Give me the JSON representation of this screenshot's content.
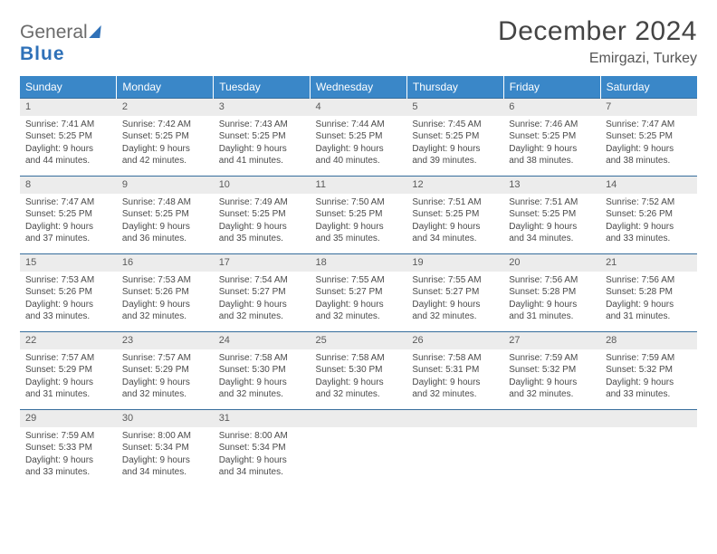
{
  "brand": {
    "part1": "General",
    "part2": "Blue"
  },
  "title": "December 2024",
  "location": "Emirgazi, Turkey",
  "style": {
    "header_bg": "#3a87c8",
    "header_fg": "#ffffff",
    "row_border": "#366d9c",
    "daynum_bg": "#ececec",
    "page_bg": "#ffffff",
    "text_color": "#4a4a4a",
    "brand_blue": "#2f71b8",
    "title_fontsize_pt": 22,
    "location_fontsize_pt": 12,
    "cell_fontsize_pt": 8,
    "header_fontsize_pt": 9
  },
  "day_headers": [
    "Sunday",
    "Monday",
    "Tuesday",
    "Wednesday",
    "Thursday",
    "Friday",
    "Saturday"
  ],
  "weeks": [
    [
      {
        "n": "1",
        "sr": "Sunrise: 7:41 AM",
        "ss": "Sunset: 5:25 PM",
        "d1": "Daylight: 9 hours",
        "d2": "and 44 minutes."
      },
      {
        "n": "2",
        "sr": "Sunrise: 7:42 AM",
        "ss": "Sunset: 5:25 PM",
        "d1": "Daylight: 9 hours",
        "d2": "and 42 minutes."
      },
      {
        "n": "3",
        "sr": "Sunrise: 7:43 AM",
        "ss": "Sunset: 5:25 PM",
        "d1": "Daylight: 9 hours",
        "d2": "and 41 minutes."
      },
      {
        "n": "4",
        "sr": "Sunrise: 7:44 AM",
        "ss": "Sunset: 5:25 PM",
        "d1": "Daylight: 9 hours",
        "d2": "and 40 minutes."
      },
      {
        "n": "5",
        "sr": "Sunrise: 7:45 AM",
        "ss": "Sunset: 5:25 PM",
        "d1": "Daylight: 9 hours",
        "d2": "and 39 minutes."
      },
      {
        "n": "6",
        "sr": "Sunrise: 7:46 AM",
        "ss": "Sunset: 5:25 PM",
        "d1": "Daylight: 9 hours",
        "d2": "and 38 minutes."
      },
      {
        "n": "7",
        "sr": "Sunrise: 7:47 AM",
        "ss": "Sunset: 5:25 PM",
        "d1": "Daylight: 9 hours",
        "d2": "and 38 minutes."
      }
    ],
    [
      {
        "n": "8",
        "sr": "Sunrise: 7:47 AM",
        "ss": "Sunset: 5:25 PM",
        "d1": "Daylight: 9 hours",
        "d2": "and 37 minutes."
      },
      {
        "n": "9",
        "sr": "Sunrise: 7:48 AM",
        "ss": "Sunset: 5:25 PM",
        "d1": "Daylight: 9 hours",
        "d2": "and 36 minutes."
      },
      {
        "n": "10",
        "sr": "Sunrise: 7:49 AM",
        "ss": "Sunset: 5:25 PM",
        "d1": "Daylight: 9 hours",
        "d2": "and 35 minutes."
      },
      {
        "n": "11",
        "sr": "Sunrise: 7:50 AM",
        "ss": "Sunset: 5:25 PM",
        "d1": "Daylight: 9 hours",
        "d2": "and 35 minutes."
      },
      {
        "n": "12",
        "sr": "Sunrise: 7:51 AM",
        "ss": "Sunset: 5:25 PM",
        "d1": "Daylight: 9 hours",
        "d2": "and 34 minutes."
      },
      {
        "n": "13",
        "sr": "Sunrise: 7:51 AM",
        "ss": "Sunset: 5:25 PM",
        "d1": "Daylight: 9 hours",
        "d2": "and 34 minutes."
      },
      {
        "n": "14",
        "sr": "Sunrise: 7:52 AM",
        "ss": "Sunset: 5:26 PM",
        "d1": "Daylight: 9 hours",
        "d2": "and 33 minutes."
      }
    ],
    [
      {
        "n": "15",
        "sr": "Sunrise: 7:53 AM",
        "ss": "Sunset: 5:26 PM",
        "d1": "Daylight: 9 hours",
        "d2": "and 33 minutes."
      },
      {
        "n": "16",
        "sr": "Sunrise: 7:53 AM",
        "ss": "Sunset: 5:26 PM",
        "d1": "Daylight: 9 hours",
        "d2": "and 32 minutes."
      },
      {
        "n": "17",
        "sr": "Sunrise: 7:54 AM",
        "ss": "Sunset: 5:27 PM",
        "d1": "Daylight: 9 hours",
        "d2": "and 32 minutes."
      },
      {
        "n": "18",
        "sr": "Sunrise: 7:55 AM",
        "ss": "Sunset: 5:27 PM",
        "d1": "Daylight: 9 hours",
        "d2": "and 32 minutes."
      },
      {
        "n": "19",
        "sr": "Sunrise: 7:55 AM",
        "ss": "Sunset: 5:27 PM",
        "d1": "Daylight: 9 hours",
        "d2": "and 32 minutes."
      },
      {
        "n": "20",
        "sr": "Sunrise: 7:56 AM",
        "ss": "Sunset: 5:28 PM",
        "d1": "Daylight: 9 hours",
        "d2": "and 31 minutes."
      },
      {
        "n": "21",
        "sr": "Sunrise: 7:56 AM",
        "ss": "Sunset: 5:28 PM",
        "d1": "Daylight: 9 hours",
        "d2": "and 31 minutes."
      }
    ],
    [
      {
        "n": "22",
        "sr": "Sunrise: 7:57 AM",
        "ss": "Sunset: 5:29 PM",
        "d1": "Daylight: 9 hours",
        "d2": "and 31 minutes."
      },
      {
        "n": "23",
        "sr": "Sunrise: 7:57 AM",
        "ss": "Sunset: 5:29 PM",
        "d1": "Daylight: 9 hours",
        "d2": "and 32 minutes."
      },
      {
        "n": "24",
        "sr": "Sunrise: 7:58 AM",
        "ss": "Sunset: 5:30 PM",
        "d1": "Daylight: 9 hours",
        "d2": "and 32 minutes."
      },
      {
        "n": "25",
        "sr": "Sunrise: 7:58 AM",
        "ss": "Sunset: 5:30 PM",
        "d1": "Daylight: 9 hours",
        "d2": "and 32 minutes."
      },
      {
        "n": "26",
        "sr": "Sunrise: 7:58 AM",
        "ss": "Sunset: 5:31 PM",
        "d1": "Daylight: 9 hours",
        "d2": "and 32 minutes."
      },
      {
        "n": "27",
        "sr": "Sunrise: 7:59 AM",
        "ss": "Sunset: 5:32 PM",
        "d1": "Daylight: 9 hours",
        "d2": "and 32 minutes."
      },
      {
        "n": "28",
        "sr": "Sunrise: 7:59 AM",
        "ss": "Sunset: 5:32 PM",
        "d1": "Daylight: 9 hours",
        "d2": "and 33 minutes."
      }
    ],
    [
      {
        "n": "29",
        "sr": "Sunrise: 7:59 AM",
        "ss": "Sunset: 5:33 PM",
        "d1": "Daylight: 9 hours",
        "d2": "and 33 minutes."
      },
      {
        "n": "30",
        "sr": "Sunrise: 8:00 AM",
        "ss": "Sunset: 5:34 PM",
        "d1": "Daylight: 9 hours",
        "d2": "and 34 minutes."
      },
      {
        "n": "31",
        "sr": "Sunrise: 8:00 AM",
        "ss": "Sunset: 5:34 PM",
        "d1": "Daylight: 9 hours",
        "d2": "and 34 minutes."
      },
      {
        "empty": true
      },
      {
        "empty": true
      },
      {
        "empty": true
      },
      {
        "empty": true
      }
    ]
  ]
}
